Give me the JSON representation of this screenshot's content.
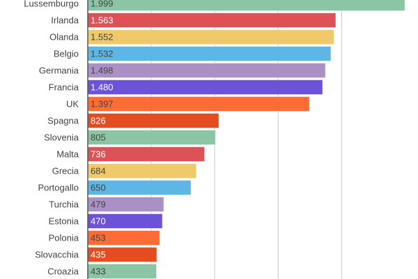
{
  "chart_data": {
    "type": "bar",
    "orientation": "horizontal",
    "categories": [
      "Lussemburgo",
      "Irlanda",
      "Olanda",
      "Belgio",
      "Germania",
      "Francia",
      "UK",
      "Spagna",
      "Slovenia",
      "Malta",
      "Grecia",
      "Portogallo",
      "Turchia",
      "Estonia",
      "Polonia",
      "Slovacchia",
      "Croazia"
    ],
    "values": [
      1999,
      1563,
      1552,
      1532,
      1498,
      1480,
      1397,
      826,
      805,
      736,
      684,
      650,
      479,
      470,
      453,
      435,
      433
    ],
    "value_labels": [
      "1.999",
      "1.563",
      "1.552",
      "1.532",
      "1.498",
      "1.480",
      "1.397",
      "826",
      "805",
      "736",
      "684",
      "650",
      "479",
      "470",
      "453",
      "435",
      "433"
    ],
    "xlim": [
      0,
      2000
    ],
    "gridlines": [
      400,
      800,
      1200,
      1600
    ],
    "grid": true,
    "colors": [
      "#8cc5a6",
      "#de5257",
      "#f0c96a",
      "#5db6e4",
      "#ab90c6",
      "#6b52d9",
      "#ff6b35",
      "#e44c22"
    ],
    "label_text_colors": [
      "#444444",
      "#ffffff",
      "#444444",
      "#444444",
      "#444444",
      "#ffffff",
      "#444444",
      "#ffffff"
    ]
  }
}
